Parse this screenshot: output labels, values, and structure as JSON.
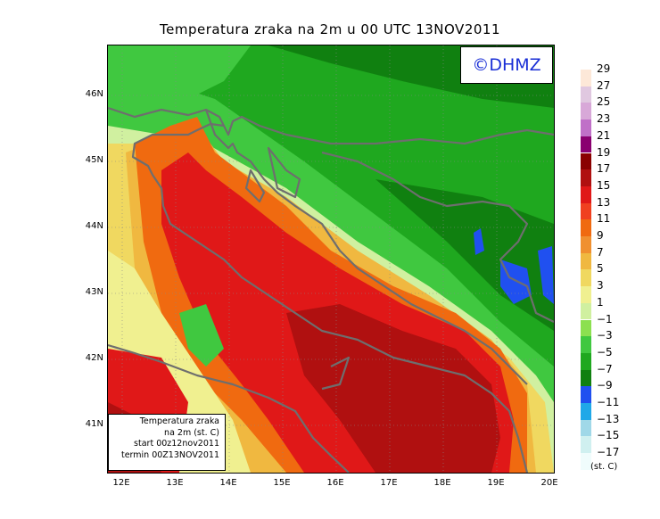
{
  "title": "Temperatura zraka na 2m u 00 UTC 13NOV2011",
  "logo": "©DHMZ",
  "info": {
    "line1": "Temperatura zraka",
    "line2": "na 2m (st. C)",
    "line3": "start 00z12nov2011",
    "line4": "termin 00Z13NOV2011"
  },
  "axes": {
    "lat_labels": [
      "46N",
      "45N",
      "44N",
      "43N",
      "42N",
      "41N"
    ],
    "lon_labels": [
      "12E",
      "13E",
      "14E",
      "15E",
      "16E",
      "17E",
      "18E",
      "19E",
      "20E"
    ]
  },
  "legend": {
    "unit": "(st. C)",
    "labels": [
      "29",
      "27",
      "25",
      "23",
      "21",
      "19",
      "17",
      "15",
      "13",
      "11",
      "9",
      "7",
      "5",
      "3",
      "1",
      "−1",
      "−3",
      "−5",
      "−7",
      "−9",
      "−11",
      "−13",
      "−15",
      "−17"
    ],
    "colors": [
      "#fde8d8",
      "#e0c8e0",
      "#d8a8d8",
      "#c070c8",
      "#8a0070",
      "#8a0000",
      "#b01010",
      "#e01818",
      "#f04020",
      "#f06a10",
      "#f09030",
      "#f0b840",
      "#f0d860",
      "#f0f090",
      "#d0f0a0",
      "#8ce050",
      "#40c840",
      "#1fa81f",
      "#108010",
      "#2050f0",
      "#20a8e8",
      "#a0d8e8",
      "#d0f0f0",
      "#f0fcfc"
    ]
  },
  "colors": {
    "coast": "#6e6e6e",
    "logo_text": "#1a2fd6"
  }
}
